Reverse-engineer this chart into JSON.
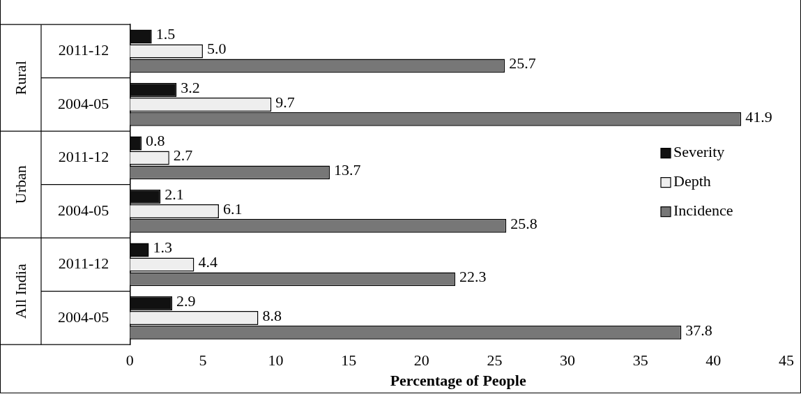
{
  "chart_data": {
    "type": "bar",
    "orientation": "horizontal",
    "xlabel": "Percentage of People",
    "categories": [
      "2011-12",
      "2004-05",
      "2011-12",
      "2004-05",
      "2011-12",
      "2004-05"
    ],
    "annotations": [
      "Rural",
      "Urban",
      "All India"
    ],
    "series": [
      {
        "name": "Severity",
        "color": "#111111",
        "values": [
          1.5,
          3.2,
          0.8,
          2.1,
          1.3,
          2.9
        ],
        "value_labels": [
          "1.5",
          "3.2",
          "0.8",
          "2.1",
          "1.3",
          "2.9"
        ]
      },
      {
        "name": "Depth",
        "color": "#eeeeee",
        "values": [
          5.0,
          9.7,
          2.7,
          6.1,
          4.4,
          8.8
        ],
        "value_labels": [
          "5.0",
          "9.7",
          "2.7",
          "6.1",
          "4.4",
          "8.8"
        ]
      },
      {
        "name": "Incidence",
        "color": "#777777",
        "values": [
          25.7,
          41.9,
          13.7,
          25.8,
          22.3,
          37.8
        ],
        "value_labels": [
          "25.7",
          "41.9",
          "13.7",
          "25.8",
          "22.3",
          "37.8"
        ]
      }
    ],
    "xlim": [
      0,
      45
    ],
    "xticks": [
      0,
      5,
      10,
      15,
      20,
      25,
      30,
      35,
      40,
      45
    ],
    "grid": false,
    "legend": "right"
  }
}
